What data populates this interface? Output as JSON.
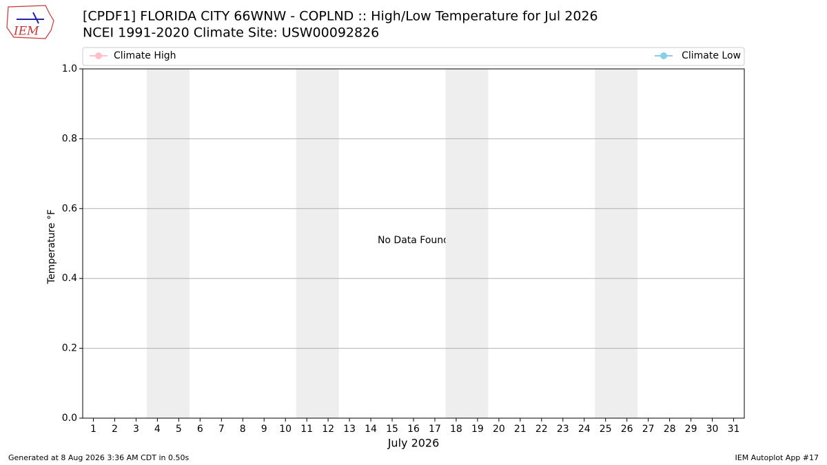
{
  "logo_text": "IEM",
  "chart_data": {
    "type": "line",
    "title": "[CPDF1] FLORIDA CITY 66WNW - COPLND :: High/Low Temperature for Jul 2026",
    "subtitle": "NCEI 1991-2020 Climate Site: USW00092826",
    "x": [
      1,
      2,
      3,
      4,
      5,
      6,
      7,
      8,
      9,
      10,
      11,
      12,
      13,
      14,
      15,
      16,
      17,
      18,
      19,
      20,
      21,
      22,
      23,
      24,
      25,
      26,
      27,
      28,
      29,
      30,
      31
    ],
    "series": [
      {
        "name": "Climate High",
        "color": "#ffc0cb",
        "values": [
          null,
          null,
          null,
          null,
          null,
          null,
          null,
          null,
          null,
          null,
          null,
          null,
          null,
          null,
          null,
          null,
          null,
          null,
          null,
          null,
          null,
          null,
          null,
          null,
          null,
          null,
          null,
          null,
          null,
          null,
          null
        ]
      },
      {
        "name": "Climate Low",
        "color": "#87ceeb",
        "values": [
          null,
          null,
          null,
          null,
          null,
          null,
          null,
          null,
          null,
          null,
          null,
          null,
          null,
          null,
          null,
          null,
          null,
          null,
          null,
          null,
          null,
          null,
          null,
          null,
          null,
          null,
          null,
          null,
          null,
          null,
          null
        ]
      }
    ],
    "xlim": [
      0.5,
      31.5
    ],
    "xticks": [
      1,
      2,
      3,
      4,
      5,
      6,
      7,
      8,
      9,
      10,
      11,
      12,
      13,
      14,
      15,
      16,
      17,
      18,
      19,
      20,
      21,
      22,
      23,
      24,
      25,
      26,
      27,
      28,
      29,
      30,
      31
    ],
    "ylim": [
      0,
      1
    ],
    "yticks": [
      {
        "value": 0,
        "label": "0.0"
      },
      0.2,
      0.4,
      0.6,
      0.8,
      {
        "value": 1,
        "label": "1.0"
      }
    ],
    "grid": true,
    "shaded_spans": [
      [
        3.5,
        5.5
      ],
      [
        10.5,
        12.5
      ],
      [
        17.5,
        19.5
      ],
      [
        24.5,
        26.5
      ]
    ],
    "shade_color": "#eeeeee",
    "xlabel": "July 2026",
    "ylabel": "Temperature °F",
    "annotation": "No Data Found",
    "footer_left": "Generated at 8 Aug 2026 3:36 AM CDT in 0.50s",
    "footer_right": "IEM Autoplot App #17"
  }
}
